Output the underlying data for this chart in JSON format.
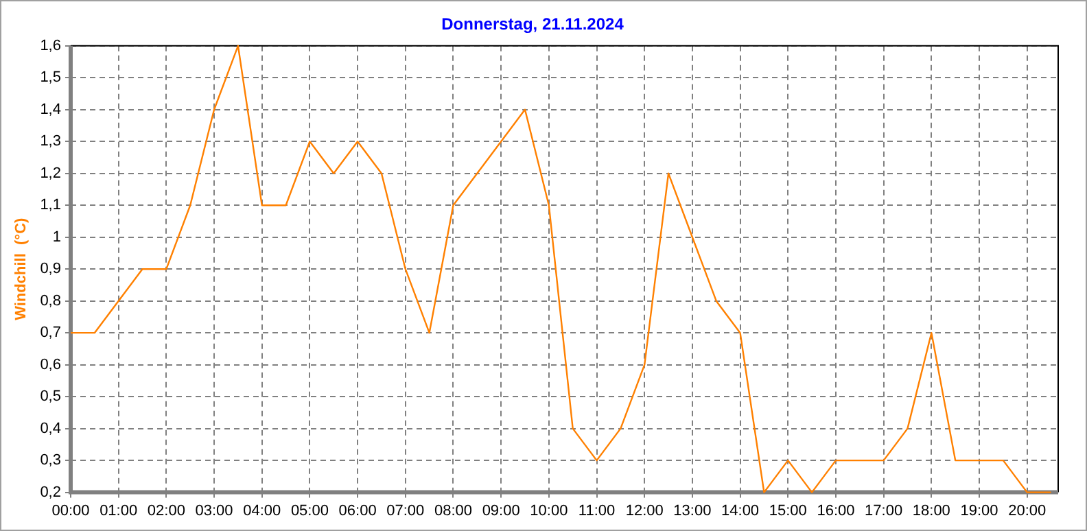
{
  "chart_data": {
    "type": "line",
    "title": "Donnerstag, 21.11.2024",
    "ylabel": "Windchill  (°C)",
    "x": [
      0,
      0.5,
      1,
      1.5,
      2,
      2.5,
      3,
      3.5,
      4,
      4.5,
      5,
      5.5,
      6,
      6.5,
      7,
      7.5,
      8,
      8.5,
      9,
      9.5,
      10,
      10.5,
      11,
      11.5,
      12,
      12.5,
      13,
      13.5,
      14,
      14.5,
      15,
      15.5,
      16,
      16.5,
      17,
      17.5,
      18,
      18.5,
      19,
      19.5,
      20,
      20.5
    ],
    "series": [
      {
        "color": "#ff8000",
        "values": [
          0.7,
          0.7,
          0.8,
          0.9,
          0.9,
          1.1,
          1.4,
          1.6,
          1.1,
          1.1,
          1.3,
          1.2,
          1.3,
          1.2,
          0.9,
          0.7,
          1.1,
          1.2,
          1.3,
          1.4,
          1.1,
          0.4,
          0.3,
          0.4,
          0.6,
          1.2,
          1.0,
          0.8,
          0.7,
          0.2,
          0.3,
          0.2,
          0.3,
          0.3,
          0.3,
          0.4,
          0.7,
          0.3,
          0.3,
          0.3,
          0.2,
          0.2
        ]
      }
    ],
    "xlim": [
      0,
      20.65
    ],
    "xticks": [
      {
        "value": 0,
        "label": "00:00"
      },
      {
        "value": 1,
        "label": "01:00"
      },
      {
        "value": 2,
        "label": "02:00"
      },
      {
        "value": 3,
        "label": "03:00"
      },
      {
        "value": 4,
        "label": "04:00"
      },
      {
        "value": 5,
        "label": "05:00"
      },
      {
        "value": 6,
        "label": "06:00"
      },
      {
        "value": 7,
        "label": "07:00"
      },
      {
        "value": 8,
        "label": "08:00"
      },
      {
        "value": 9,
        "label": "09:00"
      },
      {
        "value": 10,
        "label": "10:00"
      },
      {
        "value": 11,
        "label": "11:00"
      },
      {
        "value": 12,
        "label": "12:00"
      },
      {
        "value": 13,
        "label": "13:00"
      },
      {
        "value": 14,
        "label": "14:00"
      },
      {
        "value": 15,
        "label": "15:00"
      },
      {
        "value": 16,
        "label": "16:00"
      },
      {
        "value": 17,
        "label": "17:00"
      },
      {
        "value": 18,
        "label": "18:00"
      },
      {
        "value": 19,
        "label": "19:00"
      },
      {
        "value": 20,
        "label": "20:00"
      }
    ],
    "ylim": [
      0.2,
      1.6
    ],
    "yticks": [
      {
        "value": 0.2,
        "label": "0,2"
      },
      {
        "value": 0.3,
        "label": "0,3"
      },
      {
        "value": 0.4,
        "label": "0,4"
      },
      {
        "value": 0.5,
        "label": "0,5"
      },
      {
        "value": 0.6,
        "label": "0,6"
      },
      {
        "value": 0.7,
        "label": "0,7"
      },
      {
        "value": 0.8,
        "label": "0,8"
      },
      {
        "value": 0.9,
        "label": "0,9"
      },
      1,
      {
        "value": 1.1,
        "label": "1,1"
      },
      {
        "value": 1.2,
        "label": "1,2"
      },
      {
        "value": 1.3,
        "label": "1,3"
      },
      {
        "value": 1.4,
        "label": "1,4"
      },
      {
        "value": 1.5,
        "label": "1,5"
      },
      {
        "value": 1.6,
        "label": "1,6"
      }
    ],
    "grid": true,
    "legend": false,
    "marker": "none",
    "line_style": "solid"
  }
}
